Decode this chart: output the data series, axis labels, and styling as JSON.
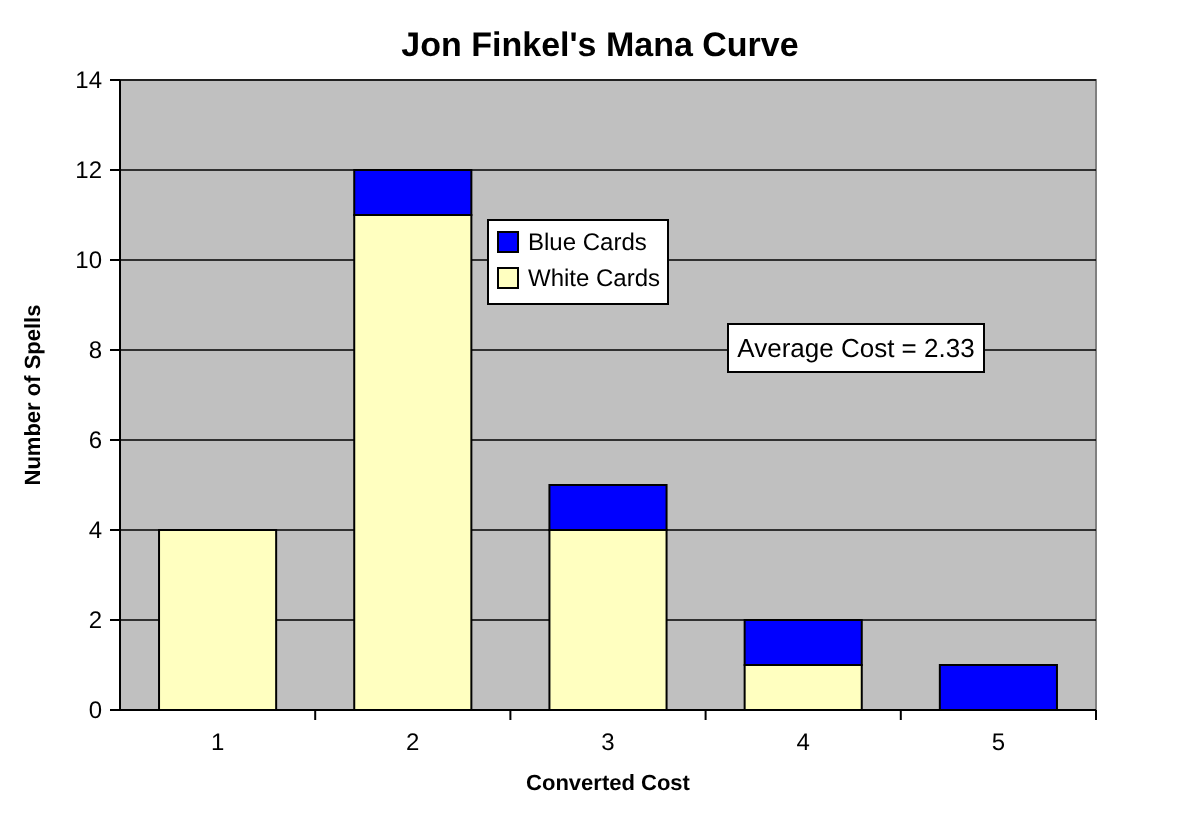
{
  "chart_data": {
    "type": "bar",
    "title": "Jon Finkel's Mana Curve",
    "xlabel": "Converted Cost",
    "ylabel": "Number of Spells",
    "categories": [
      "1",
      "2",
      "3",
      "4",
      "5"
    ],
    "stacked": true,
    "series": [
      {
        "name": "White Cards",
        "color": "#ffffc0",
        "values": [
          4,
          11,
          4,
          1,
          0
        ]
      },
      {
        "name": "Blue Cards",
        "color": "#0000ff",
        "values": [
          0,
          1,
          1,
          1,
          1
        ]
      }
    ],
    "ylim": [
      0,
      14
    ],
    "yticks": [
      0,
      2,
      4,
      6,
      8,
      10,
      12,
      14
    ],
    "grid": "y",
    "legend": "top",
    "annotations": [
      "Average Cost = 2.33"
    ]
  }
}
